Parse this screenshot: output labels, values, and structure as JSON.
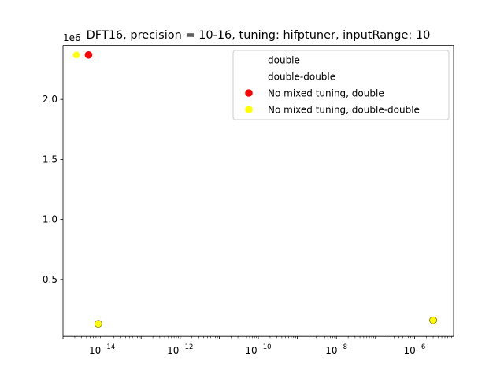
{
  "chart_data": {
    "type": "scatter",
    "title": "DFT16, precision = 10-16, tuning: hifptuner, inputRange: 10",
    "xlabel": "",
    "ylabel": "",
    "x_scale": "log",
    "xlim": [
      1e-15,
      1e-05
    ],
    "ylim": [
      25000,
      2450000
    ],
    "y_offset_label": "1e6",
    "y_ticks": [
      500000,
      1000000,
      1500000,
      2000000
    ],
    "y_tick_labels": [
      "0.5",
      "1.0",
      "1.5",
      "2.0"
    ],
    "x_ticks": [
      1e-14,
      1e-12,
      1e-10,
      1e-08,
      1e-06
    ],
    "x_tick_labels": [
      {
        "base": "10",
        "exp": "−14"
      },
      {
        "base": "10",
        "exp": "−12"
      },
      {
        "base": "10",
        "exp": "−10"
      },
      {
        "base": "10",
        "exp": "−8"
      },
      {
        "base": "10",
        "exp": "−6"
      }
    ],
    "grid": false,
    "legend_position": "top-right",
    "series": [
      {
        "name": "double",
        "color": "#ffffff",
        "edgecolor": "#ffffff",
        "size": 8,
        "x": [
          8e-15,
          3e-06
        ],
        "y": [
          130000,
          160000
        ]
      },
      {
        "name": "double-double",
        "color": "#ffffff",
        "edgecolor": "#ffffff",
        "size": 8,
        "x": [
          8e-15,
          3e-06
        ],
        "y": [
          130000,
          160000
        ]
      },
      {
        "name": "No mixed tuning, double",
        "color": "#ff0000",
        "edgecolor": "#ff0000",
        "size": 9,
        "x": [
          4.5e-15,
          3e-06
        ],
        "y": [
          2370000,
          160000
        ]
      },
      {
        "name": "No mixed tuning, double-double",
        "color": "#ffff00",
        "edgecolor": "#ffff00",
        "size": 8,
        "x": [
          2.2e-15,
          8e-15
        ],
        "y": [
          2370000,
          130000
        ]
      }
    ],
    "overlay_markers": [
      {
        "x": 8e-15,
        "y": 130000,
        "color": "#ffff00",
        "edgecolor": "#7a6a00",
        "size": 9
      },
      {
        "x": 3e-06,
        "y": 160000,
        "color": "#ffff00",
        "edgecolor": "#7a6a00",
        "size": 9
      }
    ]
  }
}
